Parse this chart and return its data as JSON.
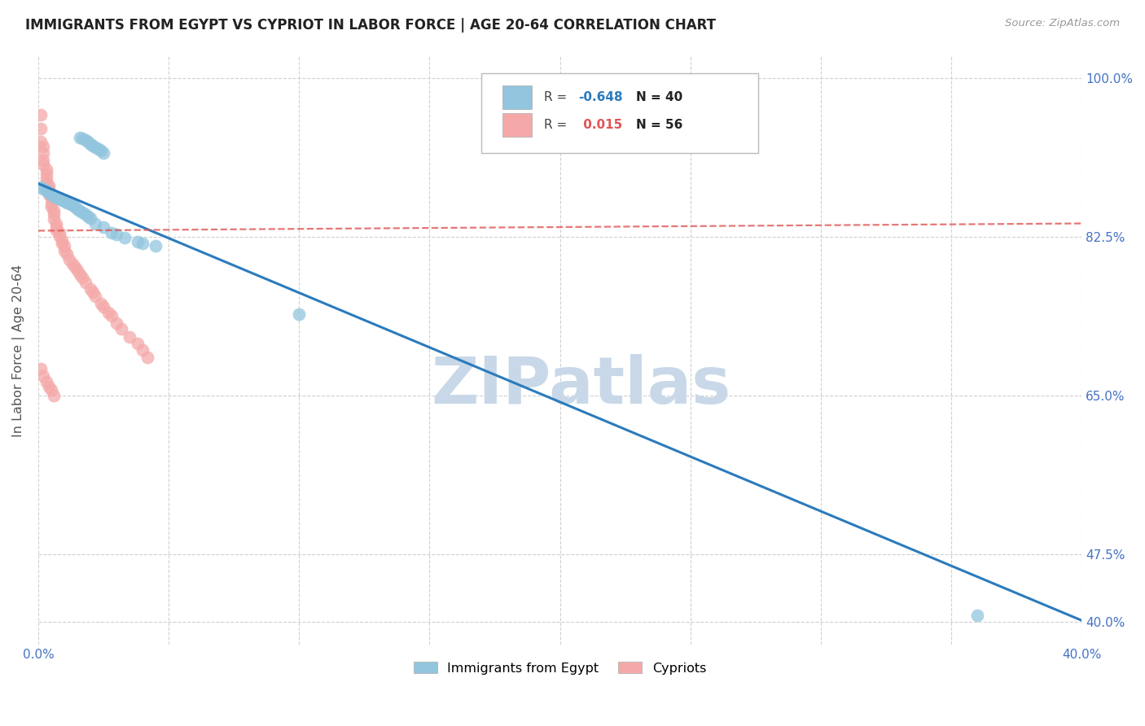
{
  "title": "IMMIGRANTS FROM EGYPT VS CYPRIOT IN LABOR FORCE | AGE 20-64 CORRELATION CHART",
  "source": "Source: ZipAtlas.com",
  "ylabel": "In Labor Force | Age 20-64",
  "xlim": [
    0.0,
    0.4
  ],
  "ylim": [
    0.375,
    1.025
  ],
  "ytick_positions": [
    0.4,
    0.475,
    0.65,
    0.825,
    1.0
  ],
  "ytick_labels": [
    "40.0%",
    "47.5%",
    "65.0%",
    "82.5%",
    "100.0%"
  ],
  "xtick_positions": [
    0.0,
    0.05,
    0.1,
    0.15,
    0.2,
    0.25,
    0.3,
    0.35,
    0.4
  ],
  "xtick_labels": [
    "0.0%",
    "",
    "",
    "",
    "",
    "",
    "",
    "",
    "40.0%"
  ],
  "egypt_x": [
    0.001,
    0.002,
    0.003,
    0.004,
    0.005,
    0.006,
    0.007,
    0.008,
    0.009,
    0.01,
    0.011,
    0.012,
    0.013,
    0.014,
    0.015,
    0.016,
    0.017,
    0.018,
    0.019,
    0.02,
    0.022,
    0.025,
    0.028,
    0.03,
    0.033,
    0.038,
    0.04,
    0.045,
    0.016,
    0.017,
    0.018,
    0.019,
    0.02,
    0.021,
    0.022,
    0.023,
    0.024,
    0.025,
    0.1,
    0.36
  ],
  "egypt_y": [
    0.88,
    0.878,
    0.876,
    0.874,
    0.872,
    0.87,
    0.868,
    0.867,
    0.866,
    0.865,
    0.863,
    0.862,
    0.86,
    0.858,
    0.856,
    0.854,
    0.852,
    0.85,
    0.848,
    0.846,
    0.84,
    0.836,
    0.83,
    0.828,
    0.824,
    0.82,
    0.818,
    0.815,
    0.935,
    0.934,
    0.932,
    0.93,
    0.928,
    0.926,
    0.924,
    0.922,
    0.92,
    0.918,
    0.74,
    0.408
  ],
  "cyprus_x": [
    0.001,
    0.001,
    0.001,
    0.002,
    0.002,
    0.002,
    0.002,
    0.003,
    0.003,
    0.003,
    0.003,
    0.004,
    0.004,
    0.004,
    0.005,
    0.005,
    0.005,
    0.006,
    0.006,
    0.006,
    0.007,
    0.007,
    0.007,
    0.008,
    0.008,
    0.009,
    0.009,
    0.01,
    0.01,
    0.011,
    0.012,
    0.013,
    0.014,
    0.015,
    0.016,
    0.017,
    0.018,
    0.02,
    0.021,
    0.022,
    0.024,
    0.025,
    0.027,
    0.028,
    0.03,
    0.032,
    0.035,
    0.038,
    0.04,
    0.042,
    0.001,
    0.002,
    0.003,
    0.004,
    0.005,
    0.006
  ],
  "cyprus_y": [
    0.96,
    0.945,
    0.93,
    0.925,
    0.918,
    0.91,
    0.905,
    0.9,
    0.895,
    0.89,
    0.885,
    0.882,
    0.878,
    0.872,
    0.868,
    0.862,
    0.858,
    0.854,
    0.85,
    0.845,
    0.84,
    0.836,
    0.832,
    0.83,
    0.826,
    0.822,
    0.818,
    0.815,
    0.81,
    0.806,
    0.8,
    0.796,
    0.792,
    0.788,
    0.784,
    0.78,
    0.775,
    0.768,
    0.764,
    0.76,
    0.752,
    0.748,
    0.742,
    0.738,
    0.73,
    0.724,
    0.715,
    0.708,
    0.7,
    0.692,
    0.68,
    0.672,
    0.665,
    0.66,
    0.656,
    0.65
  ],
  "egypt_line_x": [
    0.0,
    0.4
  ],
  "egypt_line_y": [
    0.884,
    0.402
  ],
  "cyprus_line_x": [
    0.0,
    0.4
  ],
  "cyprus_line_y": [
    0.832,
    0.84
  ],
  "r_egypt": -0.648,
  "n_egypt": 40,
  "r_cyprus": 0.015,
  "n_cyprus": 56,
  "blue_color": "#92c5de",
  "pink_color": "#f4a9a8",
  "blue_line_color": "#2b7bbd",
  "pink_line_color": "#e05555",
  "grid_color": "#d0d0d0",
  "watermark": "ZIPatlas",
  "watermark_color": "#c8d8e8",
  "axis_label_color": "#4472c4",
  "ylabel_color": "#555555",
  "title_color": "#222222"
}
